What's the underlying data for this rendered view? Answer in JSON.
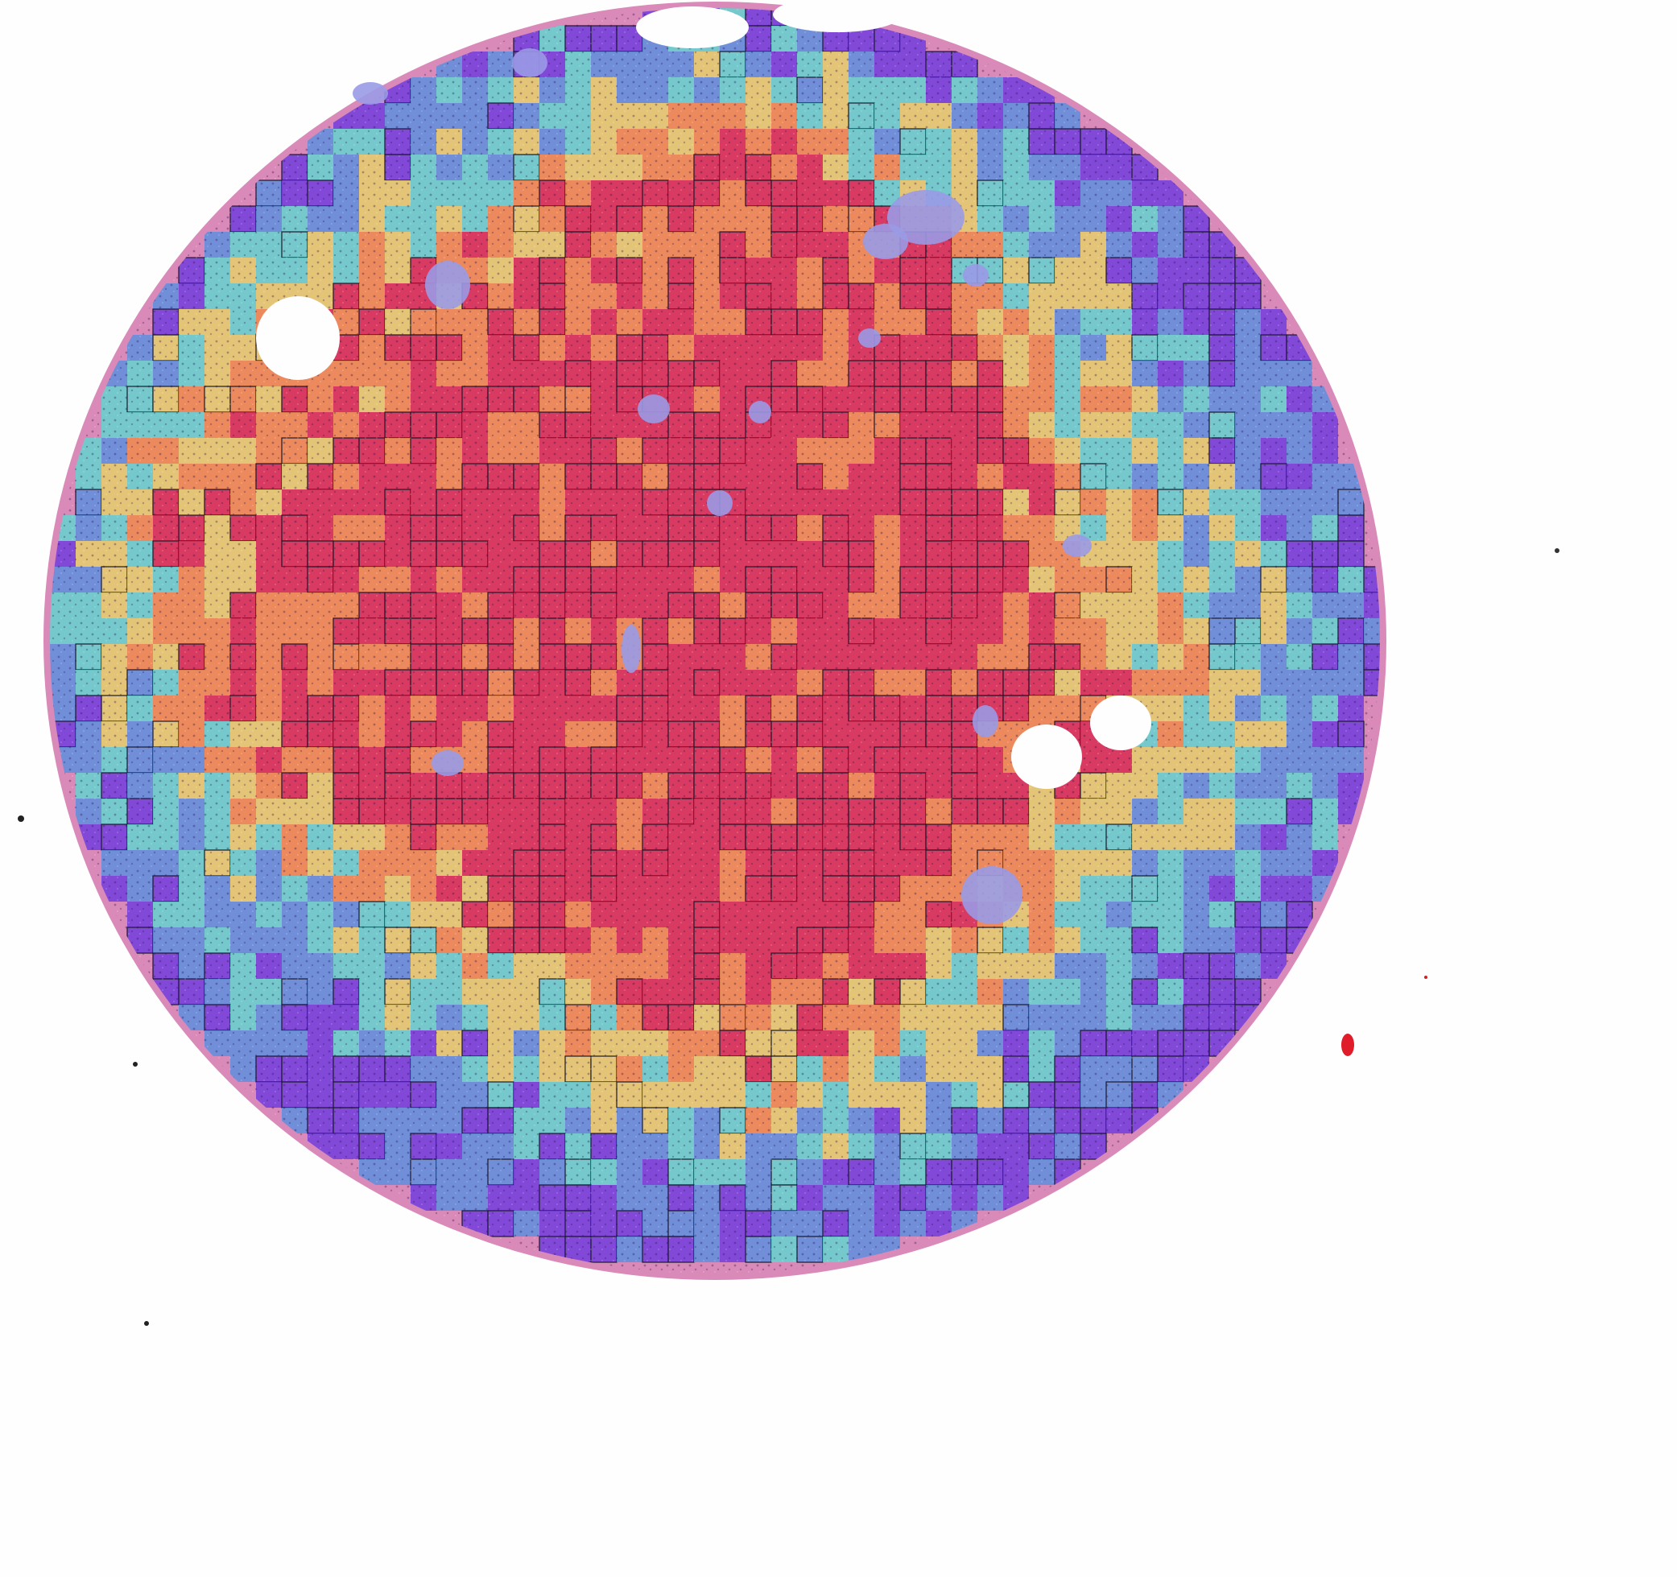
{
  "image": {
    "kind": "tissue-microarray-core-heatmap-overlay",
    "palette": {
      "low": "#6f3be0",
      "low_mid": "#5a8fe0",
      "mid": "#5fd6d0",
      "mid_high": "#e6d26a",
      "high": "#f08a4a",
      "very_high": "#d9284f",
      "tissue_pink": "#d87fb0",
      "lumen_fill": "#9a9ae6",
      "background": "#fefefe",
      "tile_border": "#1b1b2a",
      "artifact_red": "#e01b2a"
    }
  }
}
